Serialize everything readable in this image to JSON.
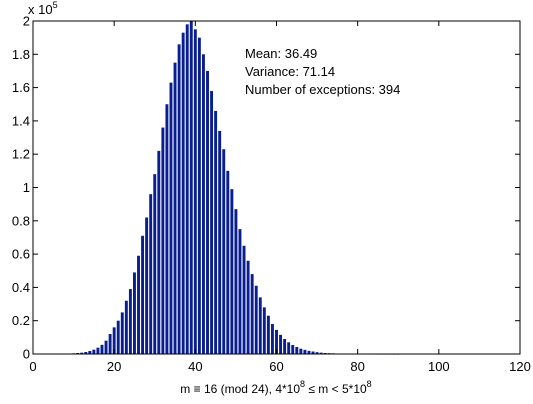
{
  "chart_data": {
    "type": "bar",
    "title": "",
    "xlabel_parts": {
      "a": "m ≡ 16 (mod 24), 4*10",
      "a_sup": "8",
      "b": " ≤  m  < 5*10",
      "b_sup": "8"
    },
    "ylabel": "",
    "y_multiplier": {
      "base": "x 10",
      "exp": "5"
    },
    "xlim": [
      0,
      120
    ],
    "ylim": [
      0,
      2
    ],
    "x_ticks": [
      0,
      20,
      40,
      60,
      80,
      100,
      120
    ],
    "y_ticks": [
      0,
      0.2,
      0.4,
      0.6,
      0.8,
      1,
      1.2,
      1.4,
      1.6,
      1.8,
      2
    ],
    "x_tick_labels": [
      "0",
      "20",
      "40",
      "60",
      "80",
      "100",
      "120"
    ],
    "y_tick_labels": [
      "0",
      "0.2",
      "0.4",
      "0.6",
      "0.8",
      "1",
      "1.2",
      "1.4",
      "1.6",
      "1.8",
      "2"
    ],
    "bar_color": "#0a1f8f",
    "annotations": {
      "mean": "Mean: 36.49",
      "variance": "Variance: 71.14",
      "exceptions": "Number of exceptions: 394"
    },
    "x": [
      7,
      8,
      9,
      10,
      11,
      12,
      13,
      14,
      15,
      16,
      17,
      18,
      19,
      20,
      21,
      22,
      23,
      24,
      25,
      26,
      27,
      28,
      29,
      30,
      31,
      32,
      33,
      34,
      35,
      36,
      37,
      38,
      39,
      40,
      41,
      42,
      43,
      44,
      45,
      46,
      47,
      48,
      49,
      50,
      51,
      52,
      53,
      54,
      55,
      56,
      57,
      58,
      59,
      60,
      61,
      62,
      63,
      64,
      65,
      66,
      67,
      68,
      69,
      70,
      71,
      72,
      73,
      74,
      75,
      76,
      77,
      78,
      79,
      80,
      81,
      82,
      83,
      84,
      85,
      86,
      87,
      88,
      89,
      90
    ],
    "values": [
      0.0005,
      0.001,
      0.002,
      0.004,
      0.006,
      0.008,
      0.012,
      0.018,
      0.026,
      0.038,
      0.055,
      0.08,
      0.12,
      0.16,
      0.2,
      0.25,
      0.32,
      0.39,
      0.49,
      0.59,
      0.71,
      0.82,
      0.96,
      1.08,
      1.22,
      1.36,
      1.5,
      1.63,
      1.75,
      1.86,
      1.93,
      1.98,
      2.0,
      1.95,
      1.9,
      1.8,
      1.7,
      1.58,
      1.46,
      1.34,
      1.23,
      1.1,
      0.99,
      0.87,
      0.75,
      0.65,
      0.56,
      0.48,
      0.41,
      0.34,
      0.28,
      0.23,
      0.18,
      0.145,
      0.115,
      0.09,
      0.07,
      0.054,
      0.042,
      0.032,
      0.025,
      0.019,
      0.015,
      0.011,
      0.008,
      0.006,
      0.005,
      0.004,
      0.003,
      0.0025,
      0.002,
      0.0015,
      0.0012,
      0.001,
      0.0008,
      0.0006,
      0.0005,
      0.0004,
      0.0003,
      0.00025,
      0.0002,
      0.00015,
      0.0001,
      0.0001
    ]
  }
}
